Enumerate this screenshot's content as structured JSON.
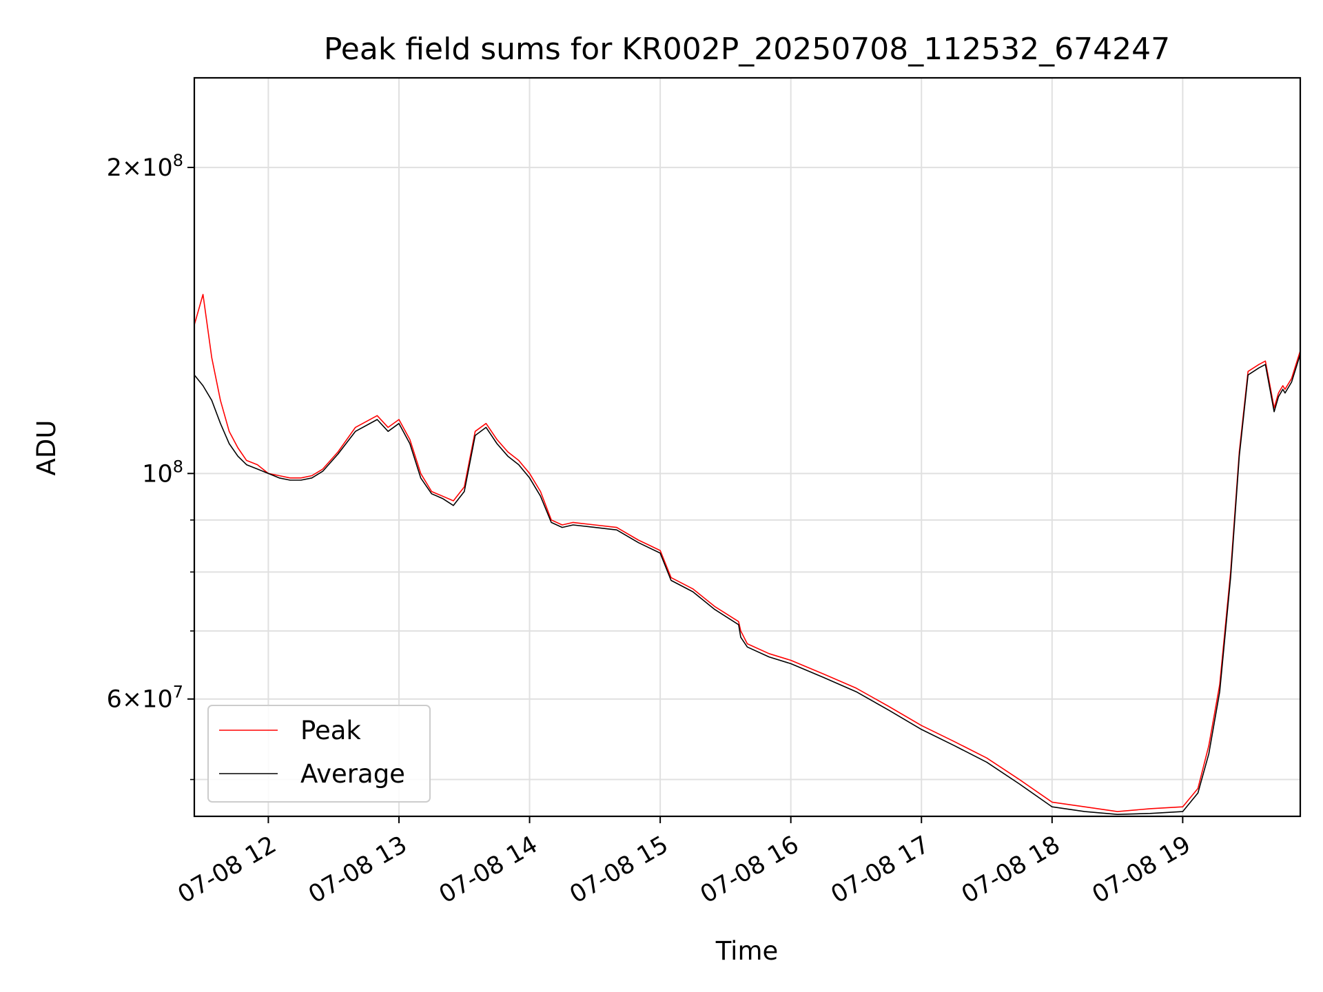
{
  "chart_data": {
    "type": "line",
    "title": "Peak field sums for KR002P_20250708_112532_674247",
    "xlabel": "Time",
    "ylabel": "ADU",
    "yscale": "log",
    "xlim": [
      "2025-07-08 11:26",
      "2025-07-08 19:54"
    ],
    "ylim": [
      46000000,
      245000000
    ],
    "grid": true,
    "legend_position": "lower-left",
    "x_tick_labels": [
      "07-08 12",
      "07-08 13",
      "07-08 14",
      "07-08 15",
      "07-08 16",
      "07-08 17",
      "07-08 18",
      "07-08 19"
    ],
    "x_tick_times": [
      "2025-07-08 12:00",
      "2025-07-08 13:00",
      "2025-07-08 14:00",
      "2025-07-08 15:00",
      "2025-07-08 16:00",
      "2025-07-08 17:00",
      "2025-07-08 18:00",
      "2025-07-08 19:00"
    ],
    "y_major_ticks": [
      {
        "value": 100000000,
        "label_base": "10",
        "label_exp": "8",
        "label_coef": ""
      },
      {
        "value": 200000000,
        "label_base": "10",
        "label_exp": "8",
        "label_coef": "2×"
      },
      {
        "value": 60000000,
        "label_base": "10",
        "label_exp": "7",
        "label_coef": "6×"
      }
    ],
    "y_minor_ticks": [
      50000000,
      70000000,
      80000000,
      90000000
    ],
    "series": [
      {
        "name": "Peak",
        "color": "#ff0000",
        "x": [
          "2025-07-08 11:26",
          "2025-07-08 11:30",
          "2025-07-08 11:34",
          "2025-07-08 11:38",
          "2025-07-08 11:42",
          "2025-07-08 11:46",
          "2025-07-08 11:50",
          "2025-07-08 11:55",
          "2025-07-08 12:00",
          "2025-07-08 12:05",
          "2025-07-08 12:10",
          "2025-07-08 12:15",
          "2025-07-08 12:20",
          "2025-07-08 12:25",
          "2025-07-08 12:32",
          "2025-07-08 12:40",
          "2025-07-08 12:50",
          "2025-07-08 12:55",
          "2025-07-08 13:00",
          "2025-07-08 13:05",
          "2025-07-08 13:10",
          "2025-07-08 13:15",
          "2025-07-08 13:20",
          "2025-07-08 13:25",
          "2025-07-08 13:30",
          "2025-07-08 13:35",
          "2025-07-08 13:40",
          "2025-07-08 13:45",
          "2025-07-08 13:50",
          "2025-07-08 13:55",
          "2025-07-08 14:00",
          "2025-07-08 14:05",
          "2025-07-08 14:10",
          "2025-07-08 14:15",
          "2025-07-08 14:20",
          "2025-07-08 14:30",
          "2025-07-08 14:40",
          "2025-07-08 14:50",
          "2025-07-08 14:55",
          "2025-07-08 15:00",
          "2025-07-08 15:05",
          "2025-07-08 15:15",
          "2025-07-08 15:25",
          "2025-07-08 15:36",
          "2025-07-08 15:37",
          "2025-07-08 15:40",
          "2025-07-08 15:50",
          "2025-07-08 16:00",
          "2025-07-08 16:15",
          "2025-07-08 16:30",
          "2025-07-08 16:45",
          "2025-07-08 17:00",
          "2025-07-08 17:15",
          "2025-07-08 17:30",
          "2025-07-08 17:45",
          "2025-07-08 18:00",
          "2025-07-08 18:15",
          "2025-07-08 18:30",
          "2025-07-08 18:45",
          "2025-07-08 19:00",
          "2025-07-08 19:07",
          "2025-07-08 19:12",
          "2025-07-08 19:17",
          "2025-07-08 19:22",
          "2025-07-08 19:26",
          "2025-07-08 19:30",
          "2025-07-08 19:35",
          "2025-07-08 19:38",
          "2025-07-08 19:42",
          "2025-07-08 19:44",
          "2025-07-08 19:46",
          "2025-07-08 19:47",
          "2025-07-08 19:50",
          "2025-07-08 19:54"
        ],
        "values": [
          140000000,
          150000000,
          130000000,
          118000000,
          110000000,
          106000000,
          103000000,
          102000000,
          100000000,
          99500000,
          99000000,
          99000000,
          99500000,
          101000000,
          105000000,
          111000000,
          114000000,
          111000000,
          113000000,
          108000000,
          100000000,
          96000000,
          95000000,
          94000000,
          97000000,
          110000000,
          112000000,
          108000000,
          105000000,
          103000000,
          100000000,
          96000000,
          90000000,
          89000000,
          89500000,
          89000000,
          88500000,
          86000000,
          85000000,
          84000000,
          79000000,
          77000000,
          74000000,
          71500000,
          70000000,
          68000000,
          66500000,
          65500000,
          63500000,
          61500000,
          59000000,
          56500000,
          54500000,
          52500000,
          50000000,
          47500000,
          47000000,
          46500000,
          46800000,
          47000000,
          49000000,
          54000000,
          62000000,
          80000000,
          105000000,
          126000000,
          128000000,
          129000000,
          116000000,
          120000000,
          122000000,
          121000000,
          124000000,
          132000000
        ]
      },
      {
        "name": "Average",
        "color": "#000000",
        "x": [
          "2025-07-08 11:26",
          "2025-07-08 11:30",
          "2025-07-08 11:34",
          "2025-07-08 11:38",
          "2025-07-08 11:42",
          "2025-07-08 11:46",
          "2025-07-08 11:50",
          "2025-07-08 11:55",
          "2025-07-08 12:00",
          "2025-07-08 12:05",
          "2025-07-08 12:10",
          "2025-07-08 12:15",
          "2025-07-08 12:20",
          "2025-07-08 12:25",
          "2025-07-08 12:32",
          "2025-07-08 12:40",
          "2025-07-08 12:50",
          "2025-07-08 12:55",
          "2025-07-08 13:00",
          "2025-07-08 13:05",
          "2025-07-08 13:10",
          "2025-07-08 13:15",
          "2025-07-08 13:20",
          "2025-07-08 13:25",
          "2025-07-08 13:30",
          "2025-07-08 13:35",
          "2025-07-08 13:40",
          "2025-07-08 13:45",
          "2025-07-08 13:50",
          "2025-07-08 13:55",
          "2025-07-08 14:00",
          "2025-07-08 14:05",
          "2025-07-08 14:10",
          "2025-07-08 14:15",
          "2025-07-08 14:20",
          "2025-07-08 14:30",
          "2025-07-08 14:40",
          "2025-07-08 14:50",
          "2025-07-08 14:55",
          "2025-07-08 15:00",
          "2025-07-08 15:05",
          "2025-07-08 15:15",
          "2025-07-08 15:25",
          "2025-07-08 15:36",
          "2025-07-08 15:37",
          "2025-07-08 15:40",
          "2025-07-08 15:50",
          "2025-07-08 16:00",
          "2025-07-08 16:15",
          "2025-07-08 16:30",
          "2025-07-08 16:45",
          "2025-07-08 17:00",
          "2025-07-08 17:15",
          "2025-07-08 17:30",
          "2025-07-08 17:45",
          "2025-07-08 18:00",
          "2025-07-08 18:15",
          "2025-07-08 18:30",
          "2025-07-08 18:45",
          "2025-07-08 19:00",
          "2025-07-08 19:07",
          "2025-07-08 19:12",
          "2025-07-08 19:17",
          "2025-07-08 19:22",
          "2025-07-08 19:26",
          "2025-07-08 19:30",
          "2025-07-08 19:35",
          "2025-07-08 19:38",
          "2025-07-08 19:42",
          "2025-07-08 19:44",
          "2025-07-08 19:46",
          "2025-07-08 19:47",
          "2025-07-08 19:50",
          "2025-07-08 19:54"
        ],
        "values": [
          125000000,
          122000000,
          118000000,
          112000000,
          107000000,
          104000000,
          102000000,
          101000000,
          100000000,
          99000000,
          98500000,
          98500000,
          99000000,
          100500000,
          104500000,
          110000000,
          113000000,
          110000000,
          112000000,
          107000000,
          99000000,
          95500000,
          94500000,
          93000000,
          96000000,
          109000000,
          111000000,
          107000000,
          104000000,
          102000000,
          99000000,
          95000000,
          89500000,
          88500000,
          89000000,
          88500000,
          88000000,
          85500000,
          84500000,
          83500000,
          78500000,
          76500000,
          73500000,
          71000000,
          69000000,
          67500000,
          66000000,
          65000000,
          63000000,
          61000000,
          58500000,
          56000000,
          54000000,
          52000000,
          49500000,
          47000000,
          46500000,
          46200000,
          46300000,
          46500000,
          48500000,
          53000000,
          61000000,
          79000000,
          104000000,
          125000000,
          127000000,
          128000000,
          115000000,
          119000000,
          121000000,
          120000000,
          123000000,
          131000000
        ]
      }
    ],
    "annotations": []
  }
}
